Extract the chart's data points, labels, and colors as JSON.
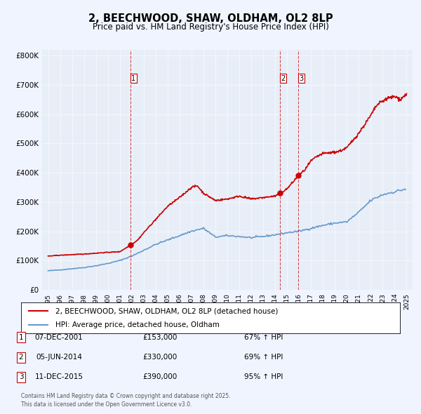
{
  "title": "2, BEECHWOOD, SHAW, OLDHAM, OL2 8LP",
  "subtitle": "Price paid vs. HM Land Registry's House Price Index (HPI)",
  "legend_line1": "2, BEECHWOOD, SHAW, OLDHAM, OL2 8LP (detached house)",
  "legend_line2": "HPI: Average price, detached house, Oldham",
  "transactions": [
    {
      "num": 1,
      "date": "07-DEC-2001",
      "year": 2001.92,
      "price": 153000,
      "hpi_pct": "67%"
    },
    {
      "num": 2,
      "date": "05-JUN-2014",
      "year": 2014.43,
      "price": 330000,
      "hpi_pct": "69%"
    },
    {
      "num": 3,
      "date": "11-DEC-2015",
      "year": 2015.95,
      "price": 390000,
      "hpi_pct": "95%"
    }
  ],
  "sale_color": "#cc0000",
  "hpi_color": "#6699cc",
  "vline_color": "#cc0000",
  "marker_color": "#cc0000",
  "background_color": "#f0f4ff",
  "plot_bg_color": "#e8eef8",
  "footer": "Contains HM Land Registry data © Crown copyright and database right 2025.\nThis data is licensed under the Open Government Licence v3.0.",
  "ylim_max": 820000,
  "ytick_values": [
    0,
    100000,
    200000,
    300000,
    400000,
    500000,
    600000,
    700000,
    800000
  ],
  "ytick_labels": [
    "£0",
    "£100K",
    "£200K",
    "£300K",
    "£400K",
    "£500K",
    "£600K",
    "£700K",
    "£800K"
  ]
}
